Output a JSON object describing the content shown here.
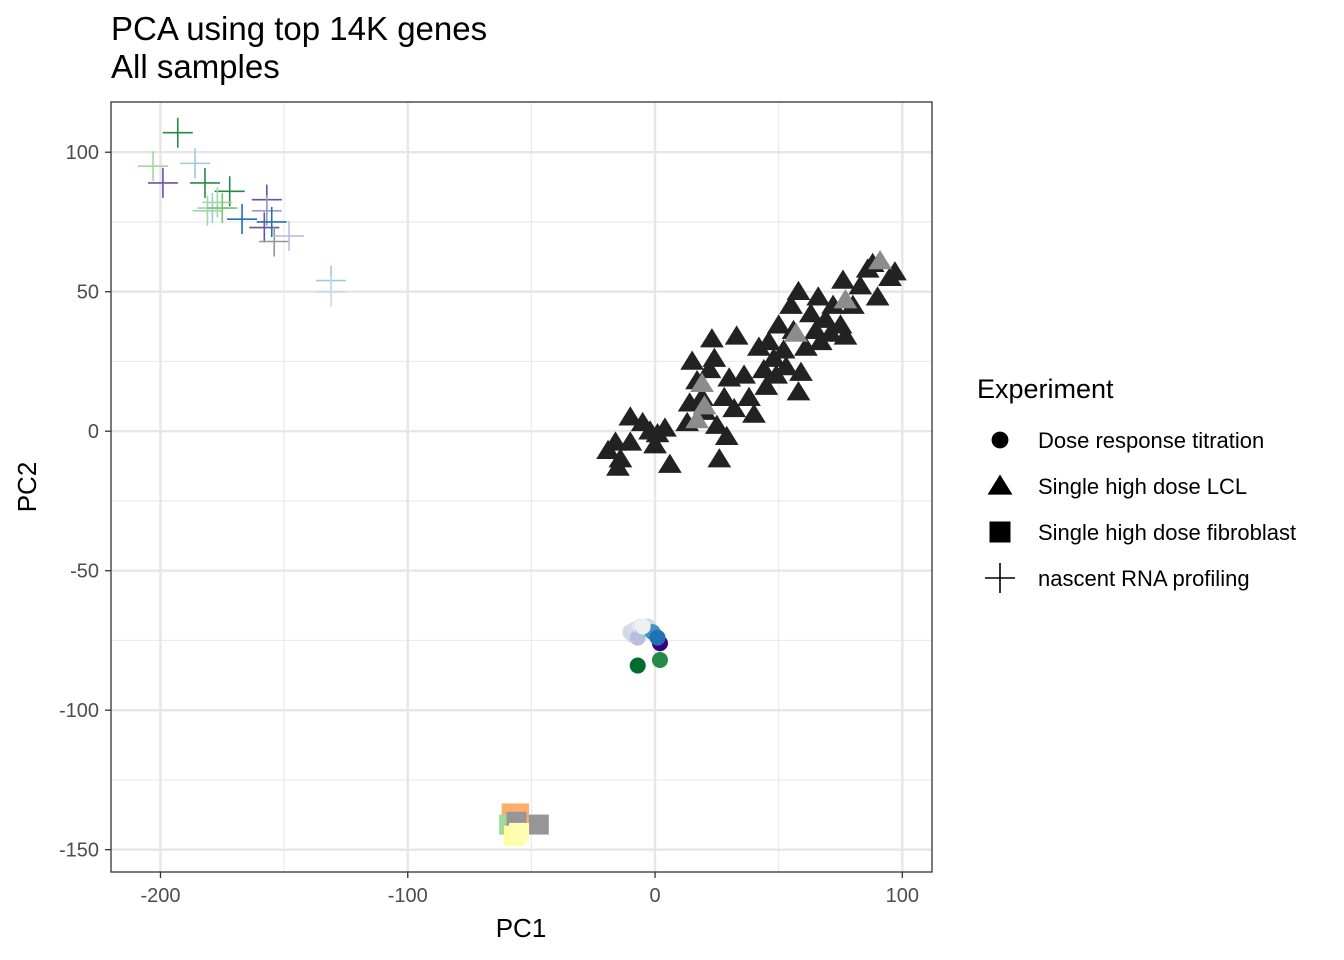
{
  "chart_data": {
    "type": "scatter",
    "title": "PCA using top 14K genes",
    "subtitle": "All samples",
    "xlabel": "PC1",
    "ylabel": "PC2",
    "xlim": [
      -220,
      112
    ],
    "ylim": [
      -158,
      118
    ],
    "grid": true,
    "x_ticks": [
      -200,
      -100,
      0,
      100
    ],
    "x_tick_labels": [
      "-200",
      "-100",
      "0",
      "100"
    ],
    "y_ticks": [
      100,
      50,
      0,
      -50,
      -100,
      -150
    ],
    "y_tick_labels": [
      "100",
      "50",
      "0",
      "-50",
      "-100",
      "-150"
    ],
    "legend": {
      "title": "Experiment",
      "position": "right",
      "entries": [
        {
          "label": "Dose response titration",
          "shape": "circle"
        },
        {
          "label": "Single high dose LCL",
          "shape": "triangle"
        },
        {
          "label": "Single high dose fibroblast",
          "shape": "square"
        },
        {
          "label": "nascent RNA profiling",
          "shape": "plus"
        }
      ]
    },
    "series": [
      {
        "name": "nascent RNA profiling",
        "shape": "plus",
        "points": [
          {
            "x": -193,
            "y": 107,
            "color": "#238b45"
          },
          {
            "x": -203,
            "y": 95,
            "color": "#a1d99b"
          },
          {
            "x": -199,
            "y": 89,
            "color": "#6a51a3"
          },
          {
            "x": -186,
            "y": 96,
            "color": "#9ecae1"
          },
          {
            "x": -182,
            "y": 89,
            "color": "#238b45"
          },
          {
            "x": -172,
            "y": 86,
            "color": "#238b45"
          },
          {
            "x": -177,
            "y": 82,
            "color": "#a1d99b"
          },
          {
            "x": -179,
            "y": 80,
            "color": "#9ecae1"
          },
          {
            "x": -181,
            "y": 79,
            "color": "#a1d99b"
          },
          {
            "x": -175,
            "y": 80,
            "color": "#74c476"
          },
          {
            "x": -167,
            "y": 76,
            "color": "#2171b5"
          },
          {
            "x": -157,
            "y": 83,
            "color": "#6a51a3"
          },
          {
            "x": -157,
            "y": 79,
            "color": "#9e9ac8"
          },
          {
            "x": -158,
            "y": 73,
            "color": "#6a51a3"
          },
          {
            "x": -155,
            "y": 75,
            "color": "#2171b5"
          },
          {
            "x": -154,
            "y": 68,
            "color": "#969696"
          },
          {
            "x": -148,
            "y": 70,
            "color": "#bcbddc"
          },
          {
            "x": -131,
            "y": 54,
            "color": "#9ecae1"
          },
          {
            "x": -131,
            "y": 50,
            "color": "#c6dbef"
          }
        ]
      },
      {
        "name": "Single high dose LCL",
        "shape": "triangle",
        "points": [
          {
            "x": -19,
            "y": -7,
            "color": "#222222"
          },
          {
            "x": -14,
            "y": -10,
            "color": "#222222"
          },
          {
            "x": -15,
            "y": -13,
            "color": "#222222"
          },
          {
            "x": -16,
            "y": -4,
            "color": "#222222"
          },
          {
            "x": -10,
            "y": -4,
            "color": "#222222"
          },
          {
            "x": -10,
            "y": 5,
            "color": "#222222"
          },
          {
            "x": -5,
            "y": 3,
            "color": "#222222"
          },
          {
            "x": -2,
            "y": 0,
            "color": "#222222"
          },
          {
            "x": 0,
            "y": -5,
            "color": "#222222"
          },
          {
            "x": 4,
            "y": 1,
            "color": "#222222"
          },
          {
            "x": 6,
            "y": -12,
            "color": "#222222"
          },
          {
            "x": 1,
            "y": -1,
            "color": "#222222"
          },
          {
            "x": 13,
            "y": 3,
            "color": "#222222"
          },
          {
            "x": 14,
            "y": 10,
            "color": "#222222"
          },
          {
            "x": 15,
            "y": 25,
            "color": "#222222"
          },
          {
            "x": 17,
            "y": 18,
            "color": "#222222"
          },
          {
            "x": 19,
            "y": 12,
            "color": "#222222"
          },
          {
            "x": 22,
            "y": 22,
            "color": "#222222"
          },
          {
            "x": 24,
            "y": 26,
            "color": "#222222"
          },
          {
            "x": 23,
            "y": 33,
            "color": "#222222"
          },
          {
            "x": 20,
            "y": 7,
            "color": "#222222"
          },
          {
            "x": 25,
            "y": 2,
            "color": "#222222"
          },
          {
            "x": 26,
            "y": -10,
            "color": "#222222"
          },
          {
            "x": 28,
            "y": 12,
            "color": "#222222"
          },
          {
            "x": 30,
            "y": 19,
            "color": "#222222"
          },
          {
            "x": 32,
            "y": 8,
            "color": "#222222"
          },
          {
            "x": 29,
            "y": -2,
            "color": "#222222"
          },
          {
            "x": 33,
            "y": 34,
            "color": "#222222"
          },
          {
            "x": 36,
            "y": 20,
            "color": "#222222"
          },
          {
            "x": 38,
            "y": 12,
            "color": "#222222"
          },
          {
            "x": 40,
            "y": 6,
            "color": "#222222"
          },
          {
            "x": 42,
            "y": 30,
            "color": "#222222"
          },
          {
            "x": 44,
            "y": 22,
            "color": "#222222"
          },
          {
            "x": 45,
            "y": 16,
            "color": "#222222"
          },
          {
            "x": 46,
            "y": 32,
            "color": "#222222"
          },
          {
            "x": 48,
            "y": 26,
            "color": "#222222"
          },
          {
            "x": 49,
            "y": 20,
            "color": "#222222"
          },
          {
            "x": 50,
            "y": 38,
            "color": "#222222"
          },
          {
            "x": 52,
            "y": 29,
            "color": "#222222"
          },
          {
            "x": 53,
            "y": 23,
            "color": "#222222"
          },
          {
            "x": 55,
            "y": 45,
            "color": "#222222"
          },
          {
            "x": 56,
            "y": 36,
            "color": "#222222"
          },
          {
            "x": 58,
            "y": 50,
            "color": "#222222"
          },
          {
            "x": 58,
            "y": 14,
            "color": "#222222"
          },
          {
            "x": 59,
            "y": 21,
            "color": "#222222"
          },
          {
            "x": 61,
            "y": 30,
            "color": "#222222"
          },
          {
            "x": 63,
            "y": 42,
            "color": "#222222"
          },
          {
            "x": 65,
            "y": 36,
            "color": "#222222"
          },
          {
            "x": 66,
            "y": 48,
            "color": "#222222"
          },
          {
            "x": 67,
            "y": 32,
            "color": "#222222"
          },
          {
            "x": 69,
            "y": 40,
            "color": "#222222"
          },
          {
            "x": 71,
            "y": 35,
            "color": "#222222"
          },
          {
            "x": 72,
            "y": 45,
            "color": "#222222"
          },
          {
            "x": 75,
            "y": 38,
            "color": "#222222"
          },
          {
            "x": 76,
            "y": 54,
            "color": "#222222"
          },
          {
            "x": 77,
            "y": 34,
            "color": "#222222"
          },
          {
            "x": 80,
            "y": 45,
            "color": "#222222"
          },
          {
            "x": 83,
            "y": 52,
            "color": "#222222"
          },
          {
            "x": 86,
            "y": 58,
            "color": "#222222"
          },
          {
            "x": 88,
            "y": 60,
            "color": "#222222"
          },
          {
            "x": 90,
            "y": 48,
            "color": "#222222"
          },
          {
            "x": 95,
            "y": 55,
            "color": "#222222"
          },
          {
            "x": 97,
            "y": 57,
            "color": "#222222"
          },
          {
            "x": 19,
            "y": 17,
            "color": "#8c8c8c"
          },
          {
            "x": 17,
            "y": 4,
            "color": "#8c8c8c"
          },
          {
            "x": 20,
            "y": 9,
            "color": "#8c8c8c"
          },
          {
            "x": 57,
            "y": 35,
            "color": "#8c8c8c"
          },
          {
            "x": 77,
            "y": 47,
            "color": "#8c8c8c"
          },
          {
            "x": 91,
            "y": 61,
            "color": "#8c8c8c"
          }
        ]
      },
      {
        "name": "Dose response titration",
        "shape": "circle",
        "points": [
          {
            "x": -10,
            "y": -72,
            "color": "#d9d9d9"
          },
          {
            "x": -9,
            "y": -73,
            "color": "#c6dbef"
          },
          {
            "x": -8,
            "y": -71,
            "color": "#dadaeb"
          },
          {
            "x": -7,
            "y": -74,
            "color": "#bcbddc"
          },
          {
            "x": -6,
            "y": -70,
            "color": "#deebf7"
          },
          {
            "x": -5,
            "y": -71,
            "color": "#9ecae1"
          },
          {
            "x": -3,
            "y": -70,
            "color": "#c6dbef"
          },
          {
            "x": -1,
            "y": -72,
            "color": "#4292c6"
          },
          {
            "x": 2,
            "y": -76,
            "color": "#3f007d"
          },
          {
            "x": 1,
            "y": -74,
            "color": "#2171b5"
          },
          {
            "x": 2,
            "y": -82,
            "color": "#238b45"
          },
          {
            "x": -7,
            "y": -84,
            "color": "#006d2c"
          },
          {
            "x": -5,
            "y": -70,
            "color": "#f0f0f0"
          }
        ]
      },
      {
        "name": "Single high dose fibroblast",
        "shape": "square",
        "points": [
          {
            "x": -58,
            "y": -137,
            "color": "#fdae6b"
          },
          {
            "x": -55,
            "y": -137,
            "color": "#fdae6b"
          },
          {
            "x": -59,
            "y": -141,
            "color": "#a1d99b"
          },
          {
            "x": -56,
            "y": -140,
            "color": "#969696"
          },
          {
            "x": -47,
            "y": -141,
            "color": "#969696"
          },
          {
            "x": -57,
            "y": -145,
            "color": "#ffff99"
          },
          {
            "x": -55,
            "y": -144,
            "color": "#ffffb3"
          }
        ]
      }
    ]
  }
}
